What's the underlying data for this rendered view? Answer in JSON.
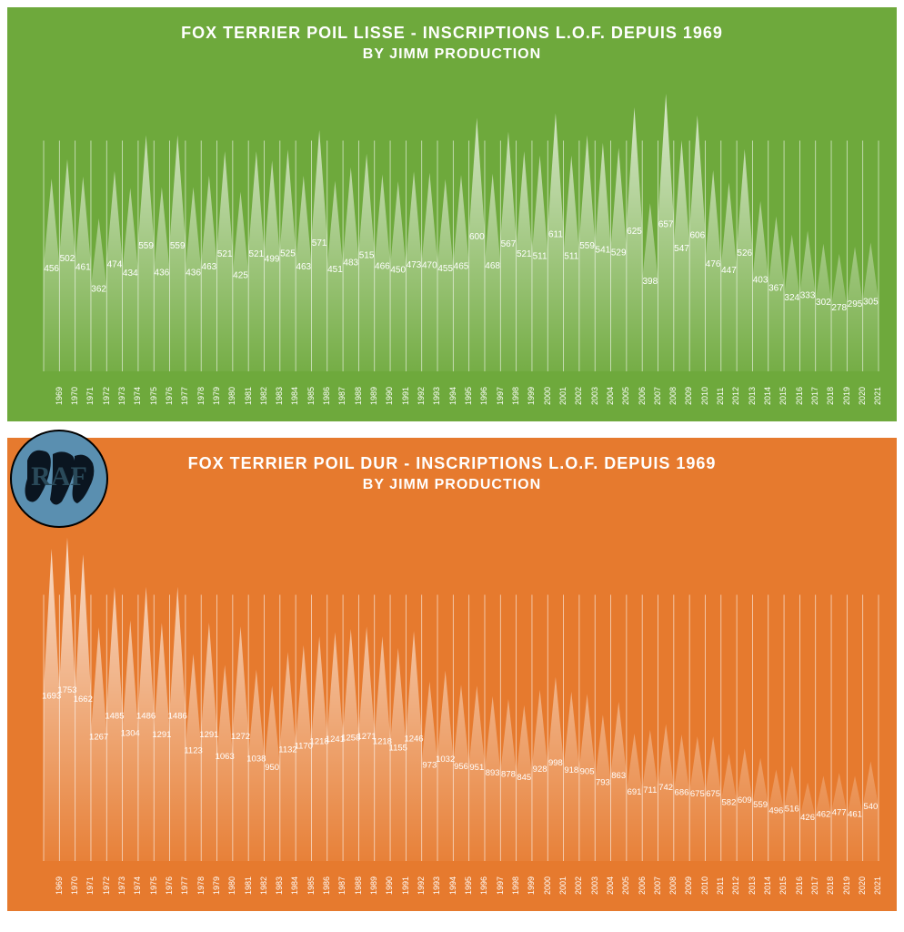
{
  "chart1": {
    "type": "area-bar",
    "title_line1": "FOX TERRIER POIL LISSE - INSCRIPTIONS L.O.F. DEPUIS 1969",
    "title_line2": "BY JIMM PRODUCTION",
    "background_color": "#6ea93c",
    "bar_fill_top": "rgba(255,255,255,0.75)",
    "bar_fill_bottom": "rgba(255,255,255,0.05)",
    "separator_color": "#ffffff",
    "text_color": "#ffffff",
    "title_fontsize": 18,
    "label_fontsize": 10,
    "xaxis_fontsize": 9,
    "years": [
      1969,
      1970,
      1971,
      1972,
      1973,
      1974,
      1975,
      1976,
      1977,
      1978,
      1979,
      1980,
      1981,
      1982,
      1983,
      1984,
      1985,
      1986,
      1987,
      1988,
      1989,
      1990,
      1991,
      1992,
      1993,
      1994,
      1995,
      1996,
      1997,
      1998,
      1999,
      2000,
      2001,
      2002,
      2003,
      2004,
      2005,
      2006,
      2007,
      2008,
      2009,
      2010,
      2011,
      2012,
      2013,
      2014,
      2015,
      2016,
      2017,
      2018,
      2019,
      2020,
      2021
    ],
    "values": [
      456,
      502,
      461,
      362,
      474,
      434,
      559,
      436,
      559,
      436,
      463,
      521,
      425,
      521,
      499,
      525,
      463,
      571,
      451,
      483,
      515,
      466,
      450,
      473,
      470,
      455,
      465,
      600,
      468,
      567,
      521,
      511,
      611,
      511,
      559,
      541,
      529,
      625,
      398,
      657,
      547,
      606,
      476,
      447,
      526,
      403,
      367,
      324,
      333,
      302,
      278,
      295,
      305
    ],
    "ylim": [
      0,
      700
    ]
  },
  "chart2": {
    "type": "area-bar",
    "title_line1": "FOX TERRIER POIL DUR - INSCRIPTIONS L.O.F. DEPUIS 1969",
    "title_line2": "BY JIMM PRODUCTION",
    "background_color": "#e67a2e",
    "bar_fill_top": "rgba(255,255,255,0.75)",
    "bar_fill_bottom": "rgba(255,255,255,0.05)",
    "separator_color": "#ffffff",
    "text_color": "#ffffff",
    "title_fontsize": 18,
    "label_fontsize": 9.5,
    "xaxis_fontsize": 9,
    "years": [
      1969,
      1970,
      1971,
      1972,
      1973,
      1974,
      1975,
      1976,
      1977,
      1978,
      1979,
      1980,
      1981,
      1982,
      1983,
      1984,
      1985,
      1986,
      1987,
      1988,
      1989,
      1990,
      1991,
      1992,
      1993,
      1994,
      1995,
      1996,
      1997,
      1998,
      1999,
      2000,
      2001,
      2002,
      2003,
      2004,
      2005,
      2006,
      2007,
      2008,
      2009,
      2010,
      2011,
      2012,
      2013,
      2014,
      2015,
      2016,
      2017,
      2018,
      2019,
      2020,
      2021
    ],
    "values": [
      1693,
      1753,
      1662,
      1267,
      1485,
      1304,
      1486,
      1291,
      1486,
      1123,
      1291,
      1063,
      1272,
      1038,
      950,
      1132,
      1170,
      1218,
      1241,
      1258,
      1271,
      1218,
      1155,
      1246,
      973,
      1032,
      956,
      951,
      893,
      878,
      845,
      928,
      998,
      918,
      905,
      793,
      863,
      691,
      711,
      742,
      686,
      675,
      675,
      582,
      609,
      559,
      496,
      516,
      426,
      462,
      477,
      461,
      540
    ],
    "ylim": [
      0,
      1850
    ]
  },
  "logo": {
    "text": "RAF",
    "circle_color": "#5a8fb0",
    "stroke_color": "#000000",
    "text_color": "#1a3a4a"
  }
}
